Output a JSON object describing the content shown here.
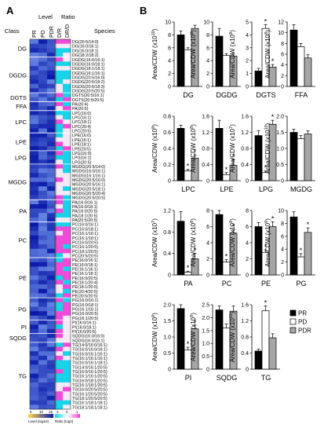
{
  "panel_labels": {
    "a": "A",
    "b": "B"
  },
  "heatmap": {
    "class_header": "Class",
    "level_header": "Level",
    "ratio_header": "Ratio",
    "species_header": "Species",
    "level_columns": [
      "PR",
      "PD",
      "PDR"
    ],
    "ratio_columns": [
      "D/R",
      "DR/D"
    ],
    "classes": [
      "DG",
      "DGDG",
      "DGTS",
      "FFA",
      "LPC",
      "LPE",
      "LPG",
      "MGDG",
      "PA",
      "PC",
      "PE",
      "PG",
      "PI",
      "SQDG",
      "TG"
    ],
    "species_rows": [
      "DG(20:5/14:0)",
      "DG(16:0/16:1)",
      "DG(16:0/18:1)",
      "DG(18:2/18:2)",
      "DGDG(16:0/16:1)",
      "DGDG(16:0/18:1)",
      "DGDG(18:1/18:1)",
      "DGDG(16:1/16:1)",
      "DGDG(20:5/16:0)",
      "DGDG(20:5/18:2)",
      "DGDG(20:5/18:3)",
      "DGDG(20:5/20:5)",
      "DGTS(20:5/16:1)",
      "DGTS(20:5/20:5)",
      "PA(20:4)",
      "PA(20:5)",
      "LPC(16:0)",
      "LPC(16:1)",
      "LPC(18:1)",
      "LPC(20:4)",
      "LPC(20:5)",
      "LPE(16:0)",
      "LPE(16:1)",
      "LPE(18:1)",
      "LPE(20:5)",
      "LPG(16:0)",
      "LPG(16:1)",
      "LPG(20:5)",
      "MGDG(20:5/14:0)",
      "MGDG(16:0/16:1)",
      "MGDG(16:1/16:1)",
      "MGDG(20:5/16:0)",
      "MGDG(20:5/16:1)",
      "MGDG(20:5/18:1)",
      "MGDG(20:5/20:4)",
      "MGDG(20:5/20:5)",
      "PA(16:0/16:1)",
      "PA(16:0/18:1)",
      "PA(16:0/20:5)",
      "PA(18:1/20:5)",
      "PA(20:5/20:5)",
      "PC(16:0/16:1)",
      "PC(16:0/18:1)",
      "PC(16:1/16:1)",
      "PC(16:1/18:1)",
      "PC(16:0/20:5)",
      "PC(16:1/20:5)",
      "PC(18:1/20:5)",
      "PC(20:5/20:5)",
      "PE(16:0/16:1)",
      "PE(16:0/18:1)",
      "PE(16:1/16:1)",
      "PE(16:1/18:1)",
      "PE(16:0/20:5)",
      "PE(18:1/20:4)",
      "PE(18:1/20:5)",
      "PE(20:4/20:5)",
      "PE(20:5/20:5)",
      "PG(16:0/16:1)",
      "PG(16:0/18:1)",
      "PG(16:1/16:1)",
      "PG(16:0/20:5)",
      "PG(16:1/20:5)",
      "PI(16:0/16:1)",
      "PI(16:0/18:1)",
      "PI(16:0/20:5)",
      "SQDG(16:0/16:0)",
      "SQDG(16:0/16:1)",
      "TG(14:0/16:0/16:1)",
      "TG(16:0/16:0/16:1)",
      "TG(16:0/16:1/16:1)",
      "TG(16:1/16:1/16:1)",
      "TG(16:0/16:1/18:1)",
      "TG(14:0/16:1/20:5)",
      "TG(16:0/16:1/20:5)",
      "TG(16:1/16:1/20:5)",
      "TG(16:0/18:1/20:5)",
      "TG(16:1/18:1/20:5)",
      "TG(16:0/20:5/20:5)",
      "TG(16:1/20:5/20:5)",
      "TG(18:1/20:5/20:5)",
      "TG(16:1/18:1/18:1)",
      "TG(18:1/18:1/18:1)"
    ],
    "legend": {
      "level_ticks": [
        "5",
        "10",
        "15"
      ],
      "level_label": "Level (log10)",
      "ratio_ticks": [
        "-1",
        "0",
        "1"
      ],
      "ratio_label": "Ratio (log2)"
    }
  },
  "colors": {
    "PR": "#000000",
    "PD": "#ffffff",
    "PDR": "#a6a6a6",
    "heat_low": "#0a1aa8",
    "heat_high": "#7a9cf0",
    "ratio_neg": "#19d3e8",
    "ratio_pos": "#f04ad8",
    "ratio_mid": "#f3e8f6"
  },
  "chart_data": [
    {
      "type": "bar",
      "title": "DG",
      "ylabel": "Area/CDW (x10",
      "yexp": "10",
      "ylim": [
        0,
        10
      ],
      "yticks": [
        "0",
        "2",
        "4",
        "6",
        "8",
        "10"
      ],
      "categories": [
        "PR",
        "PD",
        "PDR"
      ],
      "values": [
        8.0,
        5.7,
        9.0
      ],
      "errors": [
        0.6,
        0.3,
        0.5
      ],
      "stars": [
        false,
        false,
        false
      ]
    },
    {
      "type": "bar",
      "title": "DGDG",
      "ylabel": "Area/CDW (x10",
      "yexp": "8",
      "ylim": [
        0,
        10
      ],
      "yticks": [
        "0",
        "2",
        "4",
        "6",
        "8",
        "10"
      ],
      "categories": [
        "PR",
        "PD",
        "PDR"
      ],
      "values": [
        7.8,
        4.8,
        4.7
      ],
      "errors": [
        1.2,
        0.3,
        0.3
      ],
      "stars": [
        false,
        false,
        false
      ]
    },
    {
      "type": "bar",
      "title": "DGTS",
      "ylabel": "Area/CDW (x10",
      "yexp": "8",
      "ylim": [
        0,
        5
      ],
      "yticks": [
        "0",
        "1",
        "2",
        "3",
        "4",
        "5"
      ],
      "categories": [
        "PR",
        "PD",
        "PDR"
      ],
      "values": [
        1.2,
        4.5,
        1.5
      ],
      "errors": [
        0.2,
        0.3,
        0.2
      ],
      "stars": [
        false,
        true,
        true
      ]
    },
    {
      "type": "bar",
      "title": "FFA",
      "ylabel": "Area/CDW (x10",
      "yexp": "8",
      "ylim": [
        0,
        12
      ],
      "yticks": [
        "0",
        "2",
        "4",
        "6",
        "8",
        "10",
        "12"
      ],
      "categories": [
        "PR",
        "PD",
        "PDR"
      ],
      "values": [
        10.5,
        7.4,
        5.3
      ],
      "errors": [
        1.0,
        0.6,
        0.6
      ],
      "stars": [
        false,
        false,
        false
      ]
    },
    {
      "type": "bar",
      "title": "LPC",
      "ylabel": "Area/CDW (x10",
      "yexp": "8",
      "ylim": [
        0,
        0.8
      ],
      "yticks": [
        "0",
        "0.2",
        "0.4",
        "0.6",
        "0.8"
      ],
      "categories": [
        "PR",
        "PD",
        "PDR"
      ],
      "values": [
        0.65,
        0.12,
        0.28
      ],
      "errors": [
        0.04,
        0.02,
        0.04
      ],
      "stars": [
        false,
        true,
        true
      ]
    },
    {
      "type": "bar",
      "title": "LPE",
      "ylabel": "Area/CDW (x10",
      "yexp": "8",
      "ylim": [
        0,
        1.6
      ],
      "yticks": [
        "0",
        "0.4",
        "0.8",
        "1.2",
        "1.6"
      ],
      "categories": [
        "PR",
        "PD",
        "PDR"
      ],
      "values": [
        1.3,
        0.15,
        0.38
      ],
      "errors": [
        0.2,
        0.05,
        0.15
      ],
      "stars": [
        false,
        true,
        true
      ]
    },
    {
      "type": "bar",
      "title": "LPG",
      "ylabel": "Area/CDW (x10",
      "yexp": "7",
      "ylim": [
        0,
        1.6
      ],
      "yticks": [
        "0",
        "0.4",
        "0.8",
        "1.2",
        "1.6"
      ],
      "categories": [
        "PR",
        "PD",
        "PDR"
      ],
      "values": [
        1.12,
        0.2,
        1.4
      ],
      "errors": [
        0.12,
        0.04,
        0.1
      ],
      "stars": [
        false,
        true,
        true
      ]
    },
    {
      "type": "bar",
      "title": "MGDG",
      "ylabel": "Area/CDW (x10",
      "yexp": "10",
      "ylim": [
        0,
        2.0
      ],
      "yticks": [
        "0",
        "0.5",
        "1.0",
        "1.5",
        "2.0"
      ],
      "categories": [
        "PR",
        "PD",
        "PDR"
      ],
      "values": [
        1.5,
        1.3,
        1.45
      ],
      "errors": [
        0.1,
        0.1,
        0.1
      ],
      "stars": [
        false,
        false,
        false
      ]
    },
    {
      "type": "bar",
      "title": "PA",
      "ylabel": "Area/CDW (x10",
      "yexp": "7",
      "ylim": [
        0,
        1.2
      ],
      "yticks": [
        "0",
        "0.4",
        "0.8",
        "1.2"
      ],
      "categories": [
        "PR",
        "PD",
        "PDR"
      ],
      "values": [
        1.0,
        0.05,
        0.3
      ],
      "errors": [
        0.18,
        0.02,
        0.1
      ],
      "stars": [
        false,
        true,
        true
      ]
    },
    {
      "type": "bar",
      "title": "PC",
      "ylabel": "Area/CDW (x10",
      "yexp": "8",
      "ylim": [
        0,
        8
      ],
      "yticks": [
        "0",
        "2",
        "4",
        "6",
        "8"
      ],
      "categories": [
        "PR",
        "PD",
        "PDR"
      ],
      "values": [
        7.5,
        1.6,
        5.2
      ],
      "errors": [
        0.5,
        0.3,
        0.4
      ],
      "stars": [
        false,
        true,
        true
      ]
    },
    {
      "type": "bar",
      "title": "PE",
      "ylabel": "Area/CDW (x10",
      "yexp": "8",
      "ylim": [
        0,
        8
      ],
      "yticks": [
        "0",
        "2",
        "4",
        "6",
        "8"
      ],
      "categories": [
        "PR",
        "PD",
        "PDR"
      ],
      "values": [
        6.0,
        2.8,
        6.0
      ],
      "errors": [
        0.5,
        0.3,
        0.6
      ],
      "stars": [
        false,
        true,
        true
      ]
    },
    {
      "type": "bar",
      "title": "PG",
      "ylabel": "Area/CDW (x10",
      "yexp": "9",
      "ylim": [
        0,
        10
      ],
      "yticks": [
        "0",
        "2",
        "4",
        "6",
        "8",
        "10"
      ],
      "categories": [
        "PR",
        "PD",
        "PDR"
      ],
      "values": [
        9.0,
        2.8,
        6.6
      ],
      "errors": [
        0.8,
        0.5,
        0.7
      ],
      "stars": [
        false,
        true,
        true
      ]
    },
    {
      "type": "bar",
      "title": "PI",
      "ylabel": "Area/CDW (x10",
      "yexp": "9",
      "ylim": [
        0,
        2.0
      ],
      "yticks": [
        "0",
        "0.5",
        "1.0",
        "1.5",
        "2.0"
      ],
      "categories": [
        "PR",
        "PD",
        "PDR"
      ],
      "values": [
        1.88,
        0.6,
        1.25
      ],
      "errors": [
        0.15,
        0.08,
        0.12
      ],
      "stars": [
        false,
        true,
        true
      ]
    },
    {
      "type": "bar",
      "title": "SQDG",
      "ylabel": "Area/CDW (x10",
      "yexp": "9",
      "ylim": [
        0,
        2.5
      ],
      "yticks": [
        "0",
        "0.5",
        "1.0",
        "1.5",
        "2.0",
        "2.5"
      ],
      "categories": [
        "PR",
        "PD",
        "PDR"
      ],
      "values": [
        2.3,
        1.6,
        2.25
      ],
      "errors": [
        0.15,
        0.15,
        0.2
      ],
      "stars": [
        false,
        false,
        false
      ]
    },
    {
      "type": "bar",
      "title": "TG",
      "ylabel": "Area/CDW (x10",
      "yexp": "11",
      "ylim": [
        0,
        1.6
      ],
      "yticks": [
        "0",
        "0.4",
        "0.8",
        "1.2",
        "1.6"
      ],
      "categories": [
        "PR",
        "PD",
        "PDR"
      ],
      "values": [
        0.45,
        1.45,
        0.78
      ],
      "errors": [
        0.05,
        0.12,
        0.1
      ],
      "stars": [
        false,
        true,
        false
      ]
    }
  ],
  "legend": {
    "items": [
      "PR",
      "PD",
      "PDR"
    ]
  }
}
